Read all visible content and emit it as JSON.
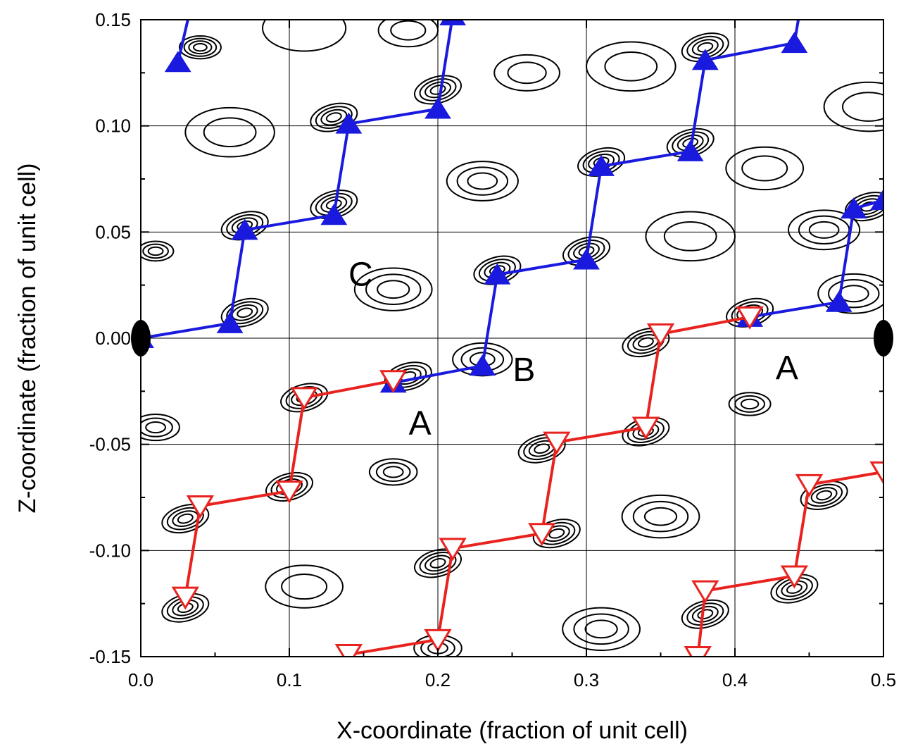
{
  "chart_data": {
    "type": "scatter",
    "title": "",
    "xlabel": "X-coordinate (fraction of unit cell)",
    "ylabel": "Z-coordinate (fraction of unit cell)",
    "xlim": [
      0.0,
      0.5
    ],
    "ylim": [
      -0.15,
      0.15
    ],
    "x_ticks": [
      "0.0",
      "0.1",
      "0.2",
      "0.3",
      "0.4",
      "0.5"
    ],
    "y_ticks": [
      "-0.15",
      "-0.10",
      "-0.05",
      "0.00",
      "0.05",
      "0.10",
      "0.15"
    ],
    "grid": true,
    "colors": {
      "blue": "#1a1adf",
      "red": "#e8231f"
    },
    "series": [
      {
        "marker": "triangle-up-filled",
        "color": "#1a1adf",
        "chains": [
          [
            [
              0.0,
              0.0
            ],
            [
              0.06,
              0.007
            ],
            [
              0.07,
              0.051
            ],
            [
              0.13,
              0.058
            ],
            [
              0.14,
              0.101
            ],
            [
              0.2,
              0.108
            ],
            [
              0.21,
              0.152
            ]
          ],
          [
            [
              0.17,
              -0.021
            ],
            [
              0.23,
              -0.013
            ],
            [
              0.24,
              0.03
            ],
            [
              0.3,
              0.037
            ],
            [
              0.31,
              0.081
            ],
            [
              0.37,
              0.088
            ],
            [
              0.38,
              0.131
            ],
            [
              0.44,
              0.139
            ],
            [
              0.45,
              0.18
            ]
          ],
          [
            [
              0.41,
              0.01
            ],
            [
              0.47,
              0.017
            ],
            [
              0.48,
              0.061
            ],
            [
              0.5,
              0.065
            ]
          ],
          [
            [
              0.025,
              0.13
            ],
            [
              0.035,
              0.16
            ]
          ]
        ]
      },
      {
        "marker": "triangle-down-open",
        "color": "#e8231f",
        "chains": [
          [
            [
              0.17,
              -0.02
            ],
            [
              0.11,
              -0.028
            ],
            [
              0.1,
              -0.072
            ],
            [
              0.04,
              -0.079
            ],
            [
              0.03,
              -0.122
            ]
          ],
          [
            [
              0.41,
              0.01
            ],
            [
              0.35,
              0.002
            ],
            [
              0.34,
              -0.042
            ],
            [
              0.28,
              -0.049
            ],
            [
              0.27,
              -0.092
            ],
            [
              0.21,
              -0.099
            ],
            [
              0.2,
              -0.142
            ],
            [
              0.14,
              -0.149
            ]
          ],
          [
            [
              0.5,
              -0.063
            ],
            [
              0.45,
              -0.069
            ],
            [
              0.44,
              -0.112
            ],
            [
              0.38,
              -0.119
            ],
            [
              0.375,
              -0.15
            ]
          ]
        ]
      }
    ],
    "special_markers": [
      [
        0.0,
        0.0
      ],
      [
        0.5,
        0.0
      ]
    ],
    "annotations": [
      {
        "text": "C",
        "x": 0.148,
        "y": 0.03
      },
      {
        "text": "A",
        "x": 0.188,
        "y": -0.04
      },
      {
        "text": "B",
        "x": 0.258,
        "y": -0.015
      },
      {
        "text": "A",
        "x": 0.435,
        "y": -0.014
      }
    ],
    "contours": [
      {
        "x": 0.04,
        "y": 0.137,
        "r": 0.014,
        "n": 4,
        "a": 0
      },
      {
        "x": 0.11,
        "y": 0.146,
        "r": 0.028,
        "n": 1,
        "a": 0
      },
      {
        "x": 0.18,
        "y": 0.145,
        "r": 0.02,
        "n": 2,
        "a": 0
      },
      {
        "x": 0.2,
        "y": 0.117,
        "r": 0.016,
        "n": 4,
        "a": -15
      },
      {
        "x": 0.26,
        "y": 0.125,
        "r": 0.022,
        "n": 2,
        "a": 0
      },
      {
        "x": 0.33,
        "y": 0.128,
        "r": 0.03,
        "n": 2,
        "a": 0
      },
      {
        "x": 0.38,
        "y": 0.137,
        "r": 0.016,
        "n": 4,
        "a": -15
      },
      {
        "x": 0.49,
        "y": 0.109,
        "r": 0.03,
        "n": 2,
        "a": 0
      },
      {
        "x": 0.06,
        "y": 0.097,
        "r": 0.03,
        "n": 2,
        "a": 0
      },
      {
        "x": 0.13,
        "y": 0.104,
        "r": 0.016,
        "n": 4,
        "a": -15
      },
      {
        "x": 0.37,
        "y": 0.092,
        "r": 0.016,
        "n": 4,
        "a": -15
      },
      {
        "x": 0.31,
        "y": 0.083,
        "r": 0.016,
        "n": 4,
        "a": -15
      },
      {
        "x": 0.23,
        "y": 0.074,
        "r": 0.024,
        "n": 3,
        "a": 0
      },
      {
        "x": 0.42,
        "y": 0.08,
        "r": 0.026,
        "n": 2,
        "a": 0
      },
      {
        "x": 0.13,
        "y": 0.063,
        "r": 0.016,
        "n": 4,
        "a": -15
      },
      {
        "x": 0.07,
        "y": 0.053,
        "r": 0.016,
        "n": 4,
        "a": -15
      },
      {
        "x": 0.46,
        "y": 0.051,
        "r": 0.024,
        "n": 3,
        "a": 0
      },
      {
        "x": 0.49,
        "y": 0.062,
        "r": 0.016,
        "n": 4,
        "a": -15
      },
      {
        "x": 0.37,
        "y": 0.048,
        "r": 0.03,
        "n": 2,
        "a": 0
      },
      {
        "x": 0.3,
        "y": 0.041,
        "r": 0.016,
        "n": 4,
        "a": -15
      },
      {
        "x": 0.24,
        "y": 0.032,
        "r": 0.016,
        "n": 4,
        "a": -15
      },
      {
        "x": 0.01,
        "y": 0.041,
        "r": 0.012,
        "n": 3,
        "a": 0
      },
      {
        "x": 0.17,
        "y": 0.023,
        "r": 0.026,
        "n": 3,
        "a": 0
      },
      {
        "x": 0.07,
        "y": 0.012,
        "r": 0.016,
        "n": 4,
        "a": -15
      },
      {
        "x": 0.48,
        "y": 0.021,
        "r": 0.024,
        "n": 3,
        "a": 0
      },
      {
        "x": 0.41,
        "y": 0.012,
        "r": 0.016,
        "n": 4,
        "a": -15
      },
      {
        "x": 0.34,
        "y": -0.002,
        "r": 0.016,
        "n": 4,
        "a": -15
      },
      {
        "x": 0.23,
        "y": -0.01,
        "r": 0.02,
        "n": 3,
        "a": 0
      },
      {
        "x": 0.18,
        "y": -0.018,
        "r": 0.016,
        "n": 4,
        "a": -15
      },
      {
        "x": 0.11,
        "y": -0.028,
        "r": 0.016,
        "n": 4,
        "a": -15
      },
      {
        "x": 0.01,
        "y": -0.042,
        "r": 0.016,
        "n": 3,
        "a": 0
      },
      {
        "x": 0.41,
        "y": -0.031,
        "r": 0.014,
        "n": 3,
        "a": 0
      },
      {
        "x": 0.34,
        "y": -0.044,
        "r": 0.016,
        "n": 4,
        "a": -15
      },
      {
        "x": 0.27,
        "y": -0.052,
        "r": 0.016,
        "n": 4,
        "a": -15
      },
      {
        "x": 0.17,
        "y": -0.063,
        "r": 0.016,
        "n": 3,
        "a": 0
      },
      {
        "x": 0.1,
        "y": -0.07,
        "r": 0.016,
        "n": 4,
        "a": -15
      },
      {
        "x": 0.46,
        "y": -0.074,
        "r": 0.016,
        "n": 4,
        "a": -15
      },
      {
        "x": 0.35,
        "y": -0.084,
        "r": 0.026,
        "n": 3,
        "a": 0
      },
      {
        "x": 0.28,
        "y": -0.092,
        "r": 0.016,
        "n": 4,
        "a": -15
      },
      {
        "x": 0.03,
        "y": -0.085,
        "r": 0.016,
        "n": 4,
        "a": -15
      },
      {
        "x": 0.2,
        "y": -0.106,
        "r": 0.016,
        "n": 4,
        "a": -15
      },
      {
        "x": 0.11,
        "y": -0.117,
        "r": 0.026,
        "n": 2,
        "a": 0
      },
      {
        "x": 0.44,
        "y": -0.118,
        "r": 0.016,
        "n": 4,
        "a": -15
      },
      {
        "x": 0.38,
        "y": -0.13,
        "r": 0.016,
        "n": 4,
        "a": -15
      },
      {
        "x": 0.03,
        "y": -0.127,
        "r": 0.016,
        "n": 4,
        "a": -15
      },
      {
        "x": 0.31,
        "y": -0.137,
        "r": 0.026,
        "n": 3,
        "a": 0
      },
      {
        "x": 0.2,
        "y": -0.146,
        "r": 0.016,
        "n": 3,
        "a": 0
      }
    ]
  }
}
